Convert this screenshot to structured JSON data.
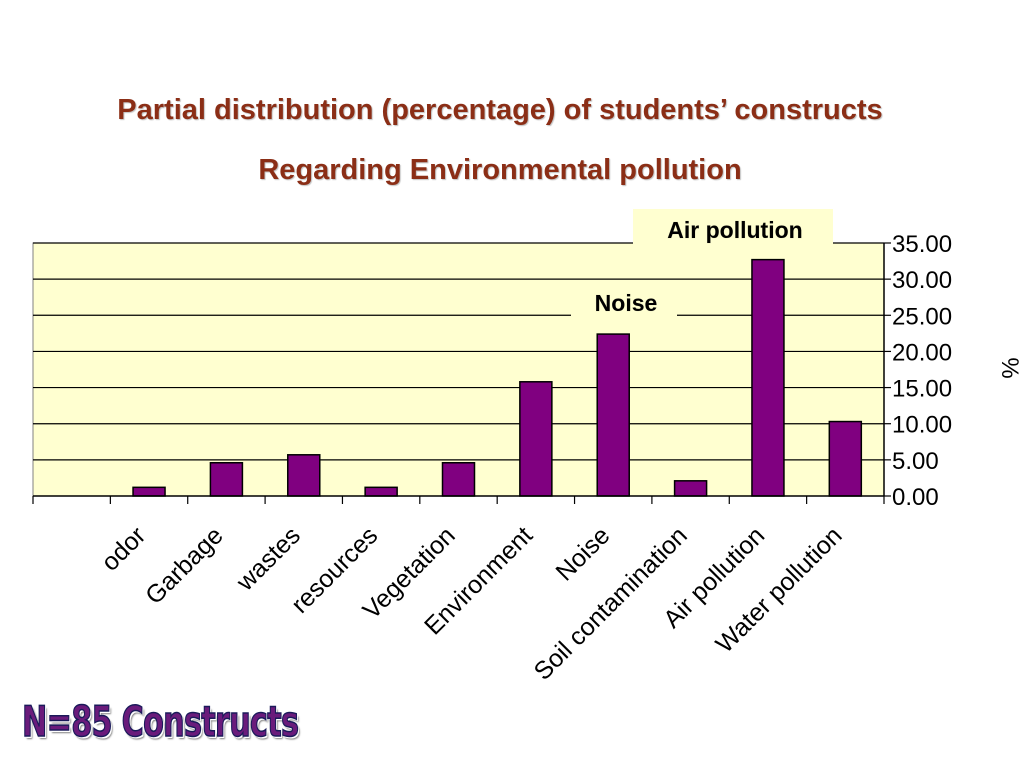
{
  "title_line1": "Partial distribution (percentage) of students’ constructs",
  "title_line2": "Regarding Environmental pollution",
  "footer": "N=85 Constructs",
  "colors": {
    "title": "#8B2E16",
    "plot_background": "#FFFFD0",
    "bar_fill": "#800080",
    "callout_background": "#FFFFD0",
    "footer_text": "#6A1B7B"
  },
  "chart_data": {
    "type": "bar",
    "categories": [
      "odor",
      "Garbage",
      "wastes",
      "resources",
      "Vegetation",
      "Environment",
      "Noise",
      "Soil contamination",
      "Air pollution",
      "Water pollution"
    ],
    "values": [
      1.2,
      4.6,
      5.7,
      1.2,
      4.6,
      15.8,
      22.4,
      2.1,
      32.7,
      10.3
    ],
    "ylabel": "%",
    "ylim": [
      0,
      35
    ],
    "yticks": [
      "0.00",
      "5.00",
      "10.00",
      "15.00",
      "20.00",
      "25.00",
      "30.00",
      "35.00"
    ],
    "y_axis_position": "right",
    "grid": true,
    "annotations": [
      "Air pollution",
      "Noise"
    ]
  }
}
